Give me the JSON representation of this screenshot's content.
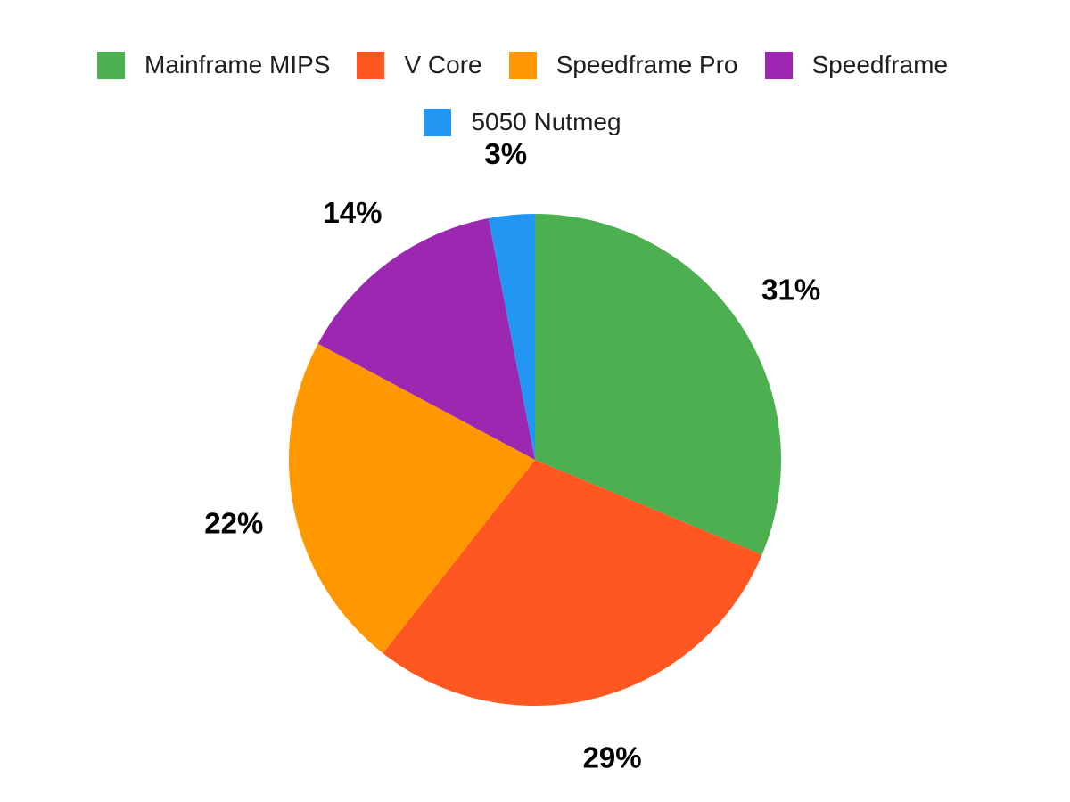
{
  "chart_data": {
    "type": "pie",
    "labels": [
      "Mainframe MIPS",
      "V Core",
      "Speedframe Pro",
      "Speedframe",
      "5050 Nutmeg"
    ],
    "values": [
      31,
      29,
      22,
      14,
      3
    ],
    "data_labels": [
      "31%",
      "29%",
      "22%",
      "14%",
      "3%"
    ],
    "colors": [
      "#4CAF50",
      "#FF5722",
      "#FF9800",
      "#9C27B0",
      "#2196F3"
    ],
    "start_angle_deg": 0,
    "direction": "clockwise",
    "legend_position": "top",
    "legend_rows": [
      4,
      1
    ],
    "background": "#FFFFFF",
    "label_color": "#000000"
  }
}
